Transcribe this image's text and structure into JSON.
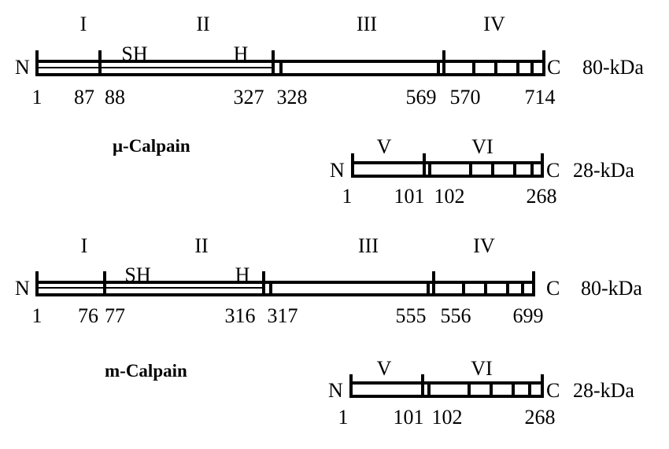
{
  "mu_calpain": {
    "label": "μ-Calpain",
    "large": {
      "n": "N",
      "c": "C",
      "size": "80-kDa",
      "domains": [
        "I",
        "II",
        "III",
        "IV"
      ],
      "motifs": [
        "SH",
        "H"
      ],
      "positions": [
        "1",
        "87",
        "88",
        "327",
        "328",
        "569",
        "570",
        "714"
      ]
    },
    "small": {
      "n": "N",
      "c": "C",
      "size": "28-kDa",
      "domains": [
        "V",
        "VI"
      ],
      "positions": [
        "1",
        "101",
        "102",
        "268"
      ]
    }
  },
  "m_calpain": {
    "label": "m-Calpain",
    "large": {
      "n": "N",
      "c": "C",
      "size": "80-kDa",
      "domains": [
        "I",
        "II",
        "III",
        "IV"
      ],
      "motifs": [
        "SH",
        "H"
      ],
      "positions": [
        "1",
        "76",
        "77",
        "316",
        "317",
        "555",
        "556",
        "699"
      ]
    },
    "small": {
      "n": "N",
      "c": "C",
      "size": "28-kDa",
      "domains": [
        "V",
        "VI"
      ],
      "positions": [
        "1",
        "101",
        "102",
        "268"
      ]
    }
  }
}
